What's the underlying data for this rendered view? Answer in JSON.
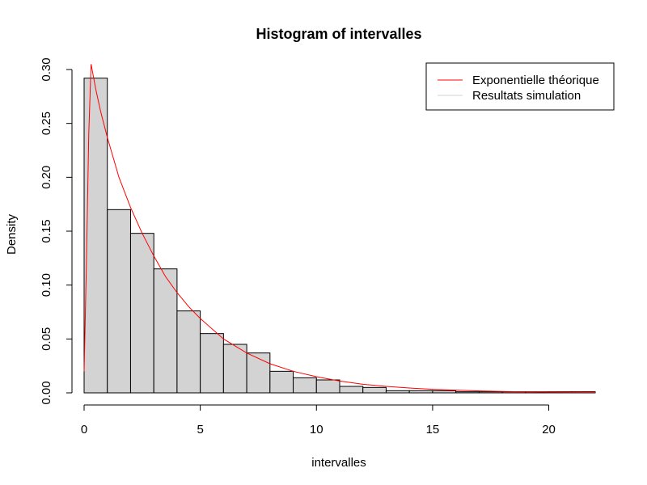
{
  "chart_data": {
    "type": "bar",
    "title": "Histogram of intervalles",
    "xlabel": "intervalles",
    "ylabel": "Density",
    "xlim": [
      0,
      22
    ],
    "ylim": [
      0,
      0.3
    ],
    "x_ticks": [
      0,
      5,
      10,
      15,
      20
    ],
    "x_tick_labels": [
      "0",
      "5",
      "10",
      "15",
      "20"
    ],
    "y_ticks": [
      0.0,
      0.05,
      0.1,
      0.15,
      0.2,
      0.25,
      0.3
    ],
    "y_tick_labels": [
      "0.00",
      "0.05",
      "0.10",
      "0.15",
      "0.20",
      "0.25",
      "0.30"
    ],
    "bin_width": 1,
    "bins": [
      {
        "start": 0,
        "end": 1,
        "density": 0.292
      },
      {
        "start": 1,
        "end": 2,
        "density": 0.17
      },
      {
        "start": 2,
        "end": 3,
        "density": 0.148
      },
      {
        "start": 3,
        "end": 4,
        "density": 0.115
      },
      {
        "start": 4,
        "end": 5,
        "density": 0.076
      },
      {
        "start": 5,
        "end": 6,
        "density": 0.055
      },
      {
        "start": 6,
        "end": 7,
        "density": 0.045
      },
      {
        "start": 7,
        "end": 8,
        "density": 0.037
      },
      {
        "start": 8,
        "end": 9,
        "density": 0.02
      },
      {
        "start": 9,
        "end": 10,
        "density": 0.014
      },
      {
        "start": 10,
        "end": 11,
        "density": 0.012
      },
      {
        "start": 11,
        "end": 12,
        "density": 0.006
      },
      {
        "start": 12,
        "end": 13,
        "density": 0.005
      },
      {
        "start": 13,
        "end": 14,
        "density": 0.002
      },
      {
        "start": 14,
        "end": 15,
        "density": 0.002
      },
      {
        "start": 15,
        "end": 16,
        "density": 0.002
      },
      {
        "start": 16,
        "end": 17,
        "density": 0.001
      },
      {
        "start": 17,
        "end": 18,
        "density": 0.001
      },
      {
        "start": 18,
        "end": 19,
        "density": 0.001
      },
      {
        "start": 19,
        "end": 20,
        "density": 0.001
      },
      {
        "start": 20,
        "end": 21,
        "density": 0.001
      },
      {
        "start": 21,
        "end": 22,
        "density": 0.001
      }
    ],
    "bar_fill": "#d3d3d3",
    "bar_stroke": "#000000",
    "series": [
      {
        "name": "Exponentielle théorique",
        "color": "#ff0000",
        "type": "line",
        "x": [
          0.0,
          0.1,
          0.2,
          0.3,
          0.5,
          0.7,
          1.0,
          1.5,
          2.0,
          2.5,
          3.0,
          3.5,
          4.0,
          4.5,
          5.0,
          6.0,
          7.0,
          8.0,
          9.0,
          10.0,
          11.0,
          12.0,
          13.0,
          14.0,
          15.0,
          16.0,
          17.0,
          18.0,
          19.0,
          20.0,
          21.0,
          22.0
        ],
        "y": [
          0.02,
          0.12,
          0.24,
          0.305,
          0.282,
          0.262,
          0.237,
          0.2,
          0.172,
          0.148,
          0.127,
          0.108,
          0.093,
          0.08,
          0.069,
          0.05,
          0.037,
          0.027,
          0.02,
          0.015,
          0.011,
          0.008,
          0.006,
          0.0045,
          0.0033,
          0.0025,
          0.0018,
          0.0013,
          0.001,
          0.0007,
          0.0005,
          0.0004
        ]
      },
      {
        "name": "Resultats simulation",
        "color": "#d3d3d3",
        "type": "legend-only"
      }
    ],
    "legend_position": "top-right",
    "grid": false
  }
}
